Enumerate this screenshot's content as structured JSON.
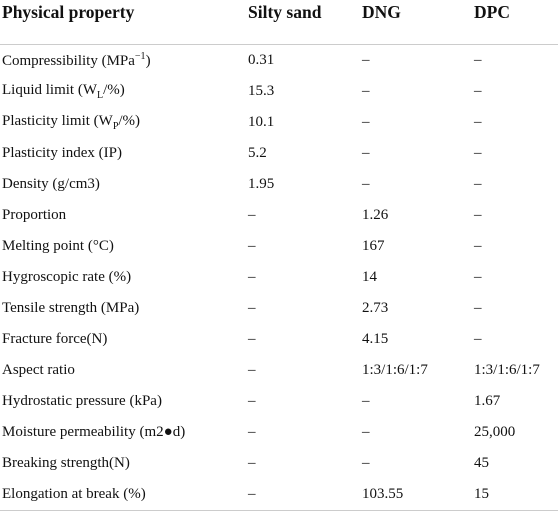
{
  "table": {
    "header": [
      "Physical property",
      "Silty sand",
      "DNG",
      "DPC"
    ],
    "rows": [
      [
        [
          {
            "t": "Compressibility (MPa"
          },
          {
            "sup": "−1"
          },
          {
            "t": ")"
          }
        ],
        "0.31",
        "–",
        "–"
      ],
      [
        [
          {
            "t": "Liquid limit (W"
          },
          {
            "sub": "L"
          },
          {
            "t": "/%)"
          }
        ],
        "15.3",
        "–",
        "–"
      ],
      [
        [
          {
            "t": "Plasticity limit (W"
          },
          {
            "sub": "P"
          },
          {
            "t": "/%)"
          }
        ],
        "10.1",
        "–",
        "–"
      ],
      [
        "Plasticity index (IP)",
        "5.2",
        "–",
        "–"
      ],
      [
        "Density (g/cm3)",
        "1.95",
        "–",
        "–"
      ],
      [
        "Proportion",
        "–",
        "1.26",
        "–"
      ],
      [
        "Melting point (°C)",
        "–",
        "167",
        "–"
      ],
      [
        "Hygroscopic rate (%)",
        "–",
        "14",
        "–"
      ],
      [
        "Tensile strength (MPa)",
        "–",
        "2.73",
        "–"
      ],
      [
        "Fracture force(N)",
        "–",
        "4.15",
        "–"
      ],
      [
        "Aspect ratio",
        "–",
        "1:3/1:6/1:7",
        "1:3/1:6/1:7"
      ],
      [
        "Hydrostatic pressure (kPa)",
        "–",
        "–",
        "1.67"
      ],
      [
        "Moisture permeability (m2●d)",
        "–",
        "–",
        "25,000"
      ],
      [
        "Breaking strength(N)",
        "–",
        "–",
        "45"
      ],
      [
        "Elongation at break (%)",
        "–",
        "103.55",
        "15"
      ]
    ]
  }
}
